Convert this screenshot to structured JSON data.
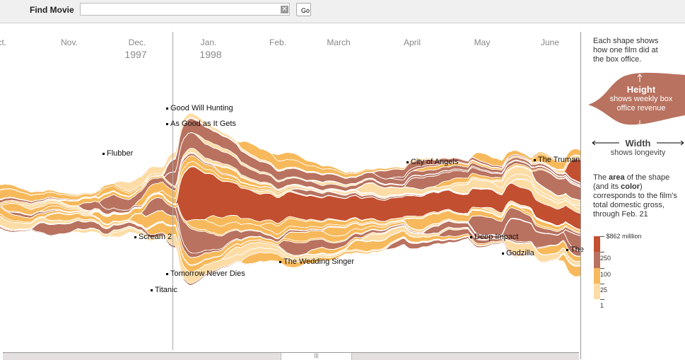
{
  "search": {
    "label": "Find Movie",
    "value": "",
    "go_label": "Go",
    "clear_icon": "clear-x-icon"
  },
  "axis": {
    "months": [
      "Oct.",
      "Nov.",
      "Dec.",
      "Jan.",
      "Feb.",
      "March",
      "April",
      "May",
      "June"
    ],
    "years": {
      "dec": "1997",
      "jan": "1998"
    }
  },
  "legend": {
    "intro": "Each shape shows how one film did at the box office.",
    "height_title": "Height",
    "height_desc": "shows weekly box office revenue",
    "width_title": "Width",
    "width_desc": "shows longevity",
    "area_text_1": "The ",
    "area_bold": "area",
    "area_text_2": " of the shape (and its ",
    "color_bold": "color",
    "area_text_3": ") corresponds to the film's total domestic gross, through Feb. 21",
    "scale": [
      "$862 milllion",
      "250",
      "100",
      "25",
      "1"
    ],
    "colors": {
      "red": "#c24f30",
      "brown": "#b8725f",
      "orange": "#f7b95b",
      "light": "#fddca6"
    }
  },
  "chart_data": {
    "type": "area",
    "subtype": "streamgraph",
    "x_unit": "weeks since Oct. 1, 1997",
    "y_unit": "weekly box office revenue ($M)",
    "films": [
      {
        "name": "Flubber",
        "start": 6.5,
        "peak": 12,
        "decay": 2.5,
        "tier": "brown",
        "order": -30
      },
      {
        "name": "Good Will Hunting",
        "start": 10.5,
        "peak": 9,
        "decay": 12,
        "tier": "brown",
        "order": -60
      },
      {
        "name": "As Good as It Gets",
        "start": 10.6,
        "peak": 11,
        "decay": 7,
        "tier": "brown",
        "order": -50
      },
      {
        "name": "Scream 2",
        "start": 9.2,
        "peak": 14,
        "decay": 1.8,
        "tier": "brown",
        "order": 40
      },
      {
        "name": "Tomorrow Never Dies",
        "start": 11.3,
        "peak": 22,
        "decay": 2.5,
        "tier": "brown",
        "order": 30
      },
      {
        "name": "Titanic",
        "start": 11.4,
        "peak": 48,
        "decay": 1.6,
        "tail": 0.32,
        "tailDecay": 45,
        "tier": "red",
        "order": 0.5
      },
      {
        "name": "The Wedding Singer",
        "start": 17.8,
        "peak": 11,
        "decay": 3,
        "tier": "brown",
        "order": 45
      },
      {
        "name": "City of Angels",
        "start": 25.8,
        "peak": 9,
        "decay": 4,
        "tier": "brown",
        "order": -45
      },
      {
        "name": "Deep Impact",
        "start": 29.8,
        "peak": 17,
        "decay": 2.5,
        "tier": "brown",
        "order": 40
      },
      {
        "name": "Godzilla",
        "start": 32,
        "peak": 20,
        "decay": 2.5,
        "tier": "brown",
        "order": 55
      },
      {
        "name": "The Truman",
        "start": 33.8,
        "peak": 13,
        "decay": 5,
        "tier": "brown",
        "order": -40
      },
      {
        "name": "The",
        "start": 35.8,
        "peak": 13,
        "decay": 3,
        "tier": "brown",
        "order": 50
      },
      {
        "name": "",
        "start": 35.9,
        "peak": 18,
        "decay": 4,
        "tier": "red",
        "order": -70
      }
    ]
  }
}
